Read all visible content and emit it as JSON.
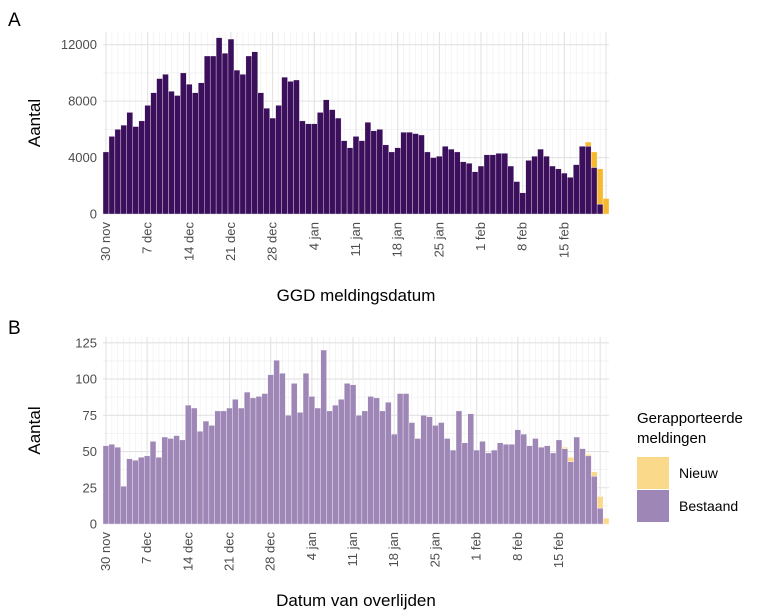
{
  "colors": {
    "bestaand_A": "#3b0f5c",
    "bestaand_B": "#9e87b6",
    "nieuw_A": "#f5b82e",
    "nieuw_B": "#fad98a",
    "grid_major": "#e2e2e2",
    "grid_minor": "#f0f0f0"
  },
  "panels": {
    "A": {
      "label": "A"
    },
    "B": {
      "label": "B"
    }
  },
  "legend": {
    "title_line1": "Gerapporteerde",
    "title_line2": "meldingen",
    "items": [
      {
        "label": "Nieuw",
        "key": "nieuw"
      },
      {
        "label": "Bestaand",
        "key": "bestaand"
      }
    ]
  },
  "chart_data": [
    {
      "type": "bar",
      "stacked": true,
      "panel": "A",
      "xlabel": "GGD meldingsdatum",
      "ylabel": "Aantal",
      "x_ticks": [
        "30 nov",
        "7 dec",
        "14 dec",
        "21 dec",
        "28 dec",
        "4 jan",
        "11 jan",
        "18 jan",
        "25 jan",
        "1 feb",
        "8 feb",
        "15 feb"
      ],
      "y_ticks": [
        0,
        4000,
        8000,
        12000
      ],
      "ylim": [
        0,
        12900
      ],
      "grid": true,
      "series": [
        {
          "name": "Bestaand",
          "values": [
            4400,
            5500,
            6000,
            6300,
            7200,
            6200,
            6600,
            7700,
            8600,
            9600,
            9900,
            8700,
            8400,
            10000,
            9200,
            8600,
            9300,
            11200,
            11200,
            12500,
            11400,
            12400,
            10200,
            9900,
            11200,
            11500,
            8600,
            7500,
            6800,
            7700,
            9700,
            9400,
            9500,
            6600,
            6400,
            6400,
            7200,
            8100,
            7400,
            6800,
            5200,
            4700,
            5500,
            5200,
            6500,
            5900,
            6000,
            4900,
            4400,
            4700,
            5800,
            5800,
            5700,
            5600,
            4400,
            4000,
            4100,
            4800,
            4600,
            4400,
            3700,
            3600,
            3000,
            3400,
            4200,
            4200,
            4300,
            4300,
            3400,
            2300,
            1500,
            3800,
            4100,
            4600,
            4100,
            3400,
            3200,
            2900,
            2600,
            3500,
            4800,
            4800,
            3300,
            700,
            0
          ]
        },
        {
          "name": "Nieuw",
          "values": [
            0,
            0,
            0,
            0,
            0,
            0,
            0,
            0,
            0,
            0,
            0,
            0,
            0,
            0,
            0,
            0,
            0,
            0,
            0,
            0,
            0,
            0,
            0,
            0,
            0,
            0,
            0,
            0,
            0,
            0,
            0,
            0,
            0,
            0,
            0,
            0,
            0,
            0,
            0,
            0,
            0,
            0,
            0,
            0,
            0,
            0,
            0,
            0,
            0,
            0,
            0,
            0,
            0,
            0,
            0,
            0,
            0,
            0,
            0,
            0,
            0,
            0,
            0,
            0,
            0,
            0,
            0,
            0,
            0,
            0,
            0,
            0,
            0,
            0,
            0,
            0,
            0,
            0,
            0,
            0,
            0,
            300,
            1100,
            2500,
            1100
          ]
        }
      ]
    },
    {
      "type": "bar",
      "stacked": true,
      "panel": "B",
      "xlabel": "Datum van overlijden",
      "ylabel": "Aantal",
      "x_ticks": [
        "30 nov",
        "7 dec",
        "14 dec",
        "21 dec",
        "28 dec",
        "4 jan",
        "11 jan",
        "18 jan",
        "25 jan",
        "1 feb",
        "8 feb",
        "15 feb"
      ],
      "y_ticks": [
        0,
        25,
        50,
        75,
        100,
        125
      ],
      "ylim": [
        0,
        129
      ],
      "grid": true,
      "series": [
        {
          "name": "Bestaand",
          "values": [
            54,
            55,
            53,
            26,
            45,
            44,
            46,
            47,
            57,
            46,
            60,
            59,
            61,
            58,
            82,
            80,
            64,
            71,
            68,
            78,
            78,
            80,
            86,
            80,
            91,
            87,
            88,
            90,
            103,
            113,
            104,
            75,
            97,
            77,
            104,
            88,
            80,
            120,
            78,
            82,
            86,
            97,
            96,
            75,
            78,
            88,
            87,
            78,
            84,
            62,
            90,
            90,
            70,
            59,
            75,
            74,
            68,
            70,
            59,
            51,
            78,
            56,
            76,
            51,
            57,
            49,
            51,
            56,
            55,
            55,
            65,
            62,
            54,
            59,
            53,
            54,
            49,
            58,
            52,
            43,
            60,
            52,
            47,
            33,
            11,
            0
          ]
        },
        {
          "name": "Nieuw",
          "values": [
            0,
            0,
            0,
            0,
            0,
            0,
            0,
            0,
            0,
            0,
            0,
            0,
            0,
            0,
            0,
            0,
            0,
            0,
            0,
            0,
            0,
            0,
            0,
            0,
            0,
            0,
            0,
            0,
            0,
            0,
            0,
            0,
            0,
            0,
            0,
            0,
            0,
            0,
            0,
            0,
            0,
            0,
            0,
            0,
            0,
            0,
            0,
            0,
            0,
            0,
            0,
            0,
            0,
            0,
            0,
            0,
            0,
            0,
            0,
            0,
            0,
            0,
            0,
            0,
            0,
            0,
            0,
            0,
            0,
            0,
            0,
            0,
            0,
            0,
            0,
            0,
            0,
            0,
            1,
            3,
            0,
            0,
            1,
            3,
            8,
            4
          ]
        }
      ]
    }
  ]
}
